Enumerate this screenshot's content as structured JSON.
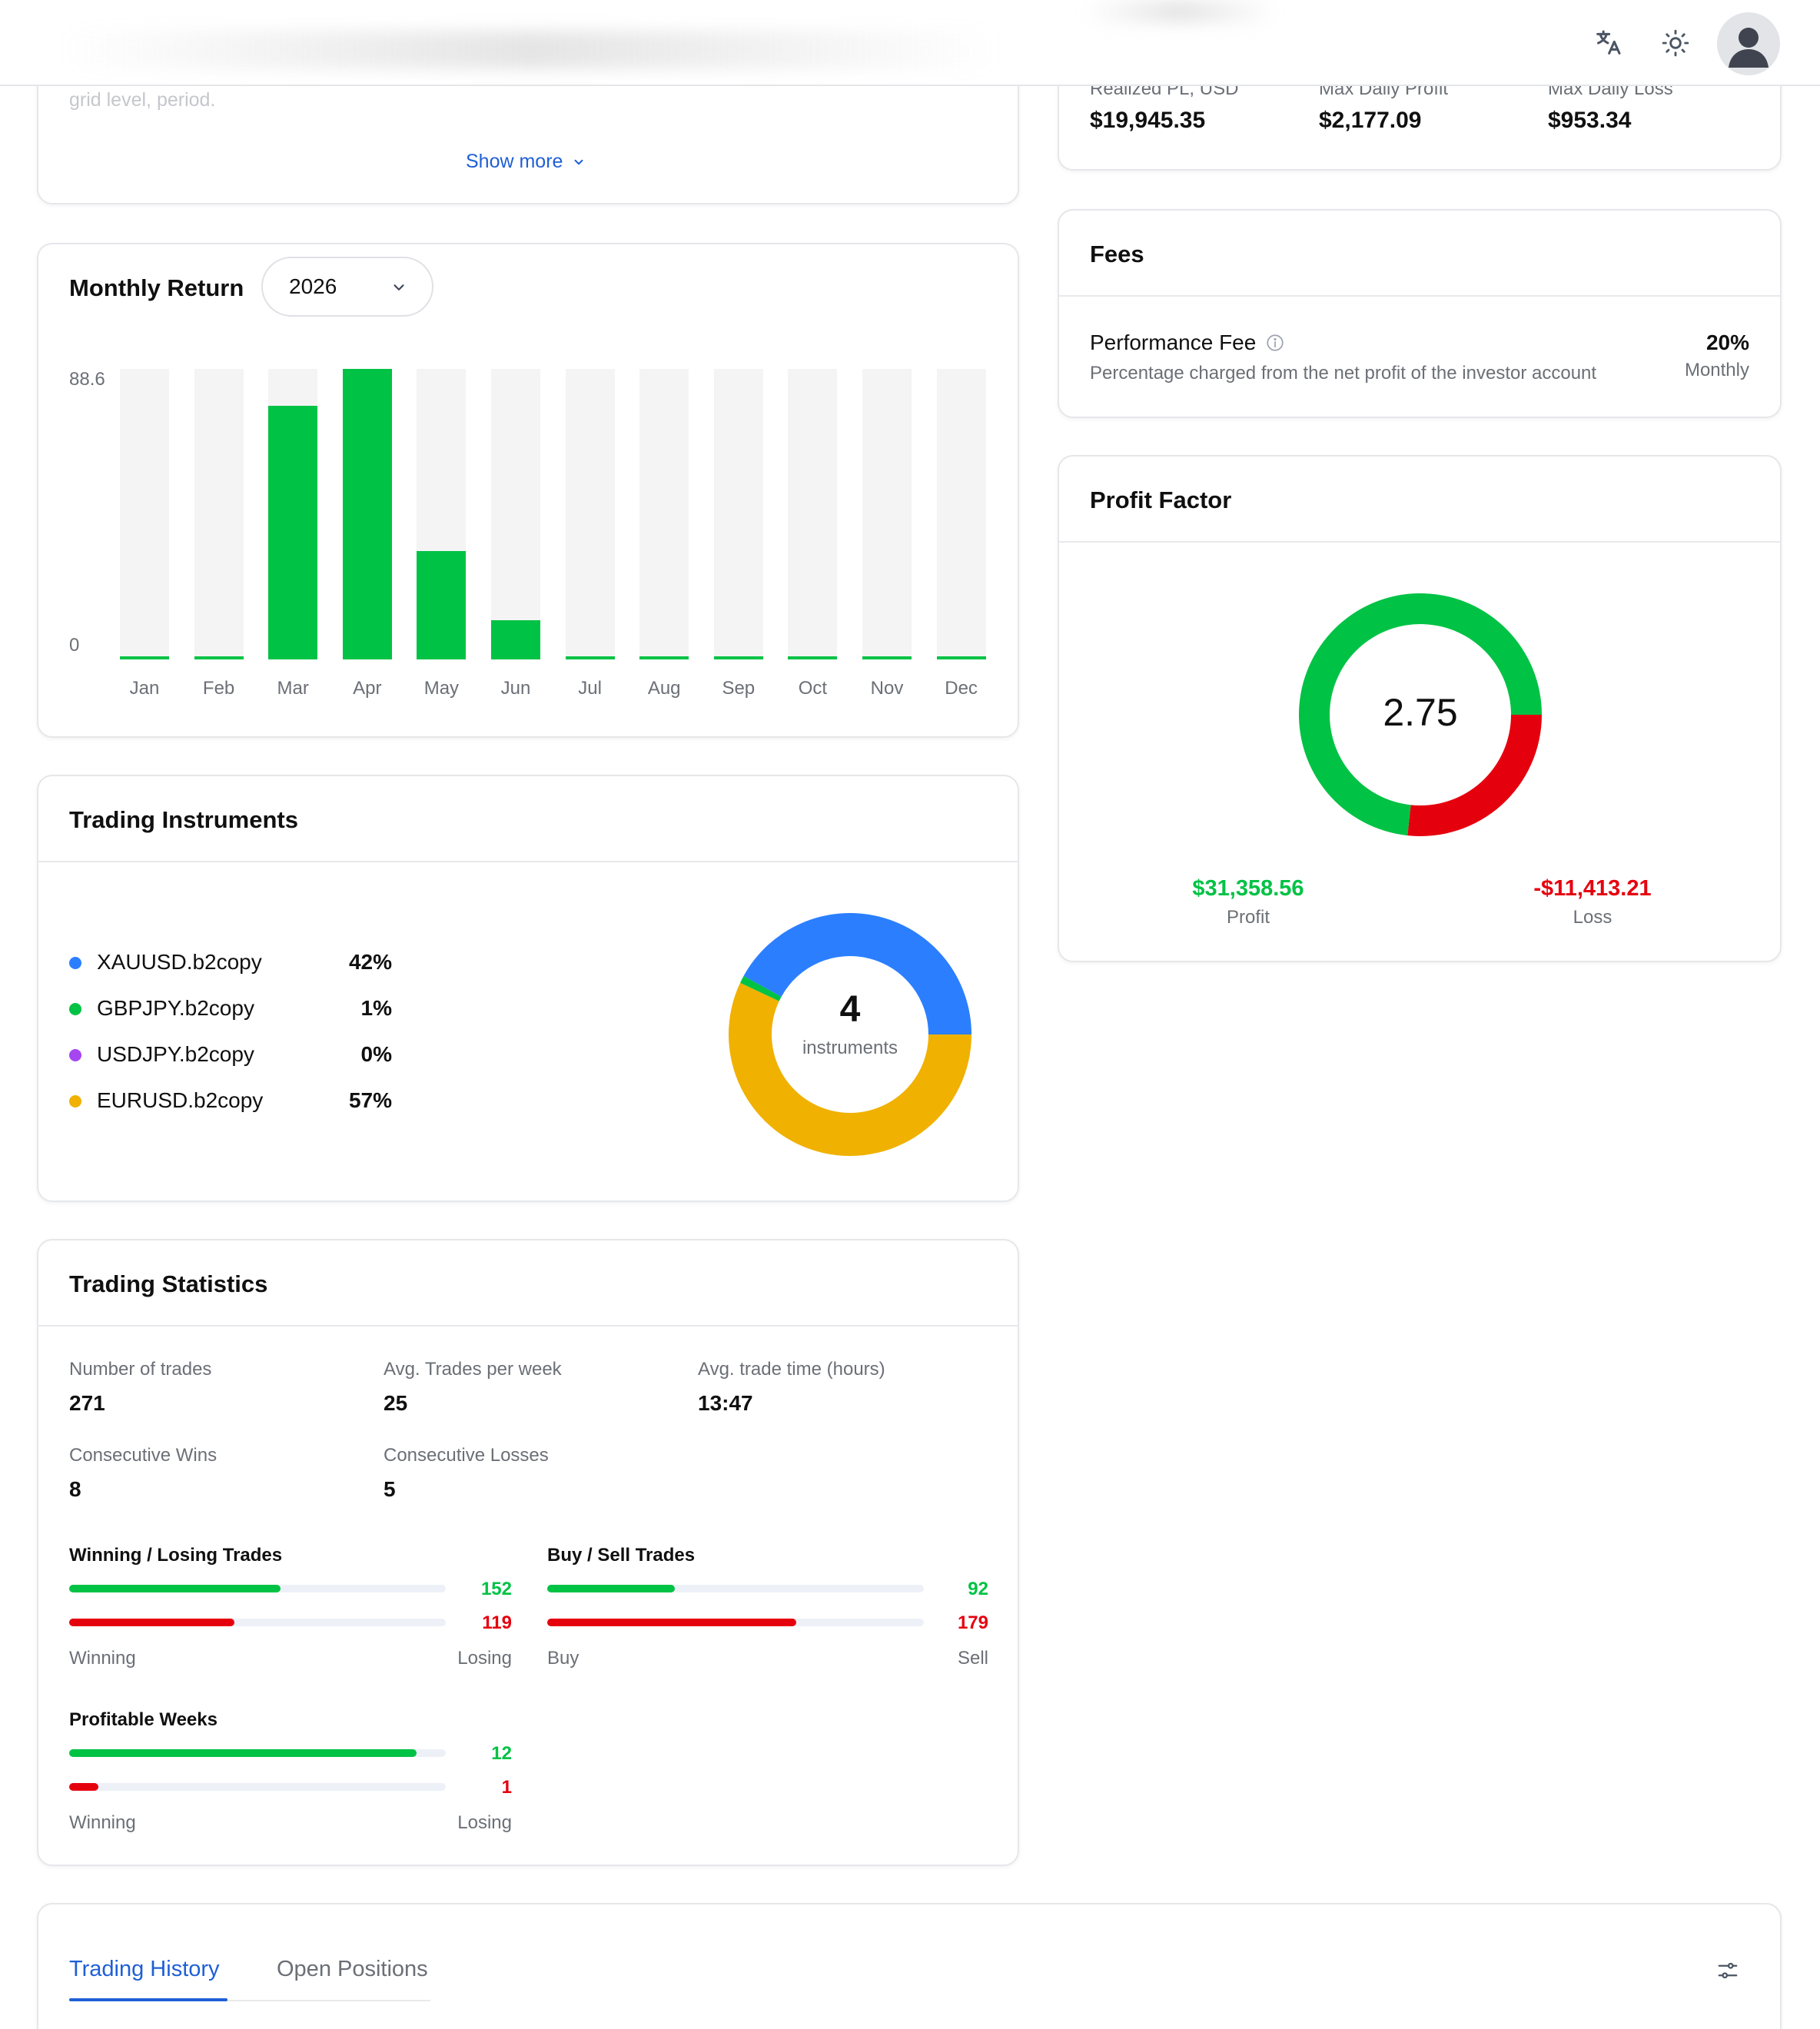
{
  "colors": {
    "green": "#00c244",
    "red": "#e5000e",
    "blue": "#2b7fff",
    "purple": "#a646f0",
    "amber": "#f0b100",
    "link": "#1f5fd6"
  },
  "header": {
    "translate_icon": "translate-icon",
    "theme_icon": "sun-icon",
    "avatar_icon": "user-avatar-icon"
  },
  "description_card": {
    "faded_text": "grid level, period.",
    "show_more": "Show more"
  },
  "summary": {
    "items": [
      {
        "label": "Realized PL, USD",
        "value": "$19,945.35"
      },
      {
        "label": "Max Daily Profit",
        "value": "$2,177.09"
      },
      {
        "label": "Max Daily Loss",
        "value": "$953.34"
      }
    ]
  },
  "fees": {
    "title": "Fees",
    "fee_name": "Performance Fee",
    "fee_desc": "Percentage charged from the net profit of the investor account",
    "fee_value": "20%",
    "fee_period": "Monthly"
  },
  "profit_factor": {
    "title": "Profit Factor",
    "value": "2.75",
    "profit_amount": "$31,358.56",
    "profit_label": "Profit",
    "loss_amount": "-$11,413.21",
    "loss_label": "Loss",
    "profit_value": 31358.56,
    "loss_value": 11413.21
  },
  "monthly_return": {
    "title": "Monthly Return",
    "year": "2026",
    "y_max_label": "88.6",
    "y_min_label": "0"
  },
  "chart_data": {
    "type": "bar",
    "categories": [
      "Jan",
      "Feb",
      "Mar",
      "Apr",
      "May",
      "Jun",
      "Jul",
      "Aug",
      "Sep",
      "Oct",
      "Nov",
      "Dec"
    ],
    "values": [
      0,
      0,
      77.3,
      88.6,
      33,
      12,
      0,
      0,
      0,
      0,
      0,
      0
    ],
    "title": "Monthly Return",
    "ylim": [
      0,
      88.6
    ],
    "grid": false
  },
  "instruments": {
    "title": "Trading Instruments",
    "count": "4",
    "count_label": "instruments",
    "items": [
      {
        "name": "XAUUSD.b2copy",
        "pct": "42%",
        "value": 42,
        "color": "#2b7fff"
      },
      {
        "name": "GBPJPY.b2copy",
        "pct": "1%",
        "value": 1,
        "color": "#00c244"
      },
      {
        "name": "USDJPY.b2copy",
        "pct": "0%",
        "value": 0,
        "color": "#a646f0"
      },
      {
        "name": "EURUSD.b2copy",
        "pct": "57%",
        "value": 57,
        "color": "#f0b100"
      }
    ]
  },
  "statistics": {
    "title": "Trading Statistics",
    "number_of_trades_label": "Number of trades",
    "number_of_trades": "271",
    "avg_trades_week_label": "Avg. Trades per week",
    "avg_trades_week": "25",
    "avg_trade_time_label": "Avg. trade time (hours)",
    "avg_trade_time": "13:47",
    "consecutive_wins_label": "Consecutive Wins",
    "consecutive_wins": "8",
    "consecutive_losses_label": "Consecutive Losses",
    "consecutive_losses": "5",
    "win_lose": {
      "title": "Winning / Losing Trades",
      "win": "152",
      "lose": "119",
      "win_fraction": 0.561,
      "lose_fraction": 0.439,
      "win_label": "Winning",
      "lose_label": "Losing"
    },
    "buy_sell": {
      "title": "Buy / Sell Trades",
      "buy": "92",
      "sell": "179",
      "buy_fraction": 0.339,
      "sell_fraction": 0.661,
      "buy_label": "Buy",
      "sell_label": "Sell"
    },
    "weeks": {
      "title": "Profitable Weeks",
      "win": "12",
      "lose": "1",
      "win_fraction": 0.923,
      "lose_fraction": 0.077,
      "win_label": "Winning",
      "lose_label": "Losing"
    }
  },
  "history": {
    "tabs": [
      {
        "label": "Trading History",
        "active": true
      },
      {
        "label": "Open Positions",
        "active": false
      }
    ],
    "filter_icon": "filter-sliders-icon"
  }
}
